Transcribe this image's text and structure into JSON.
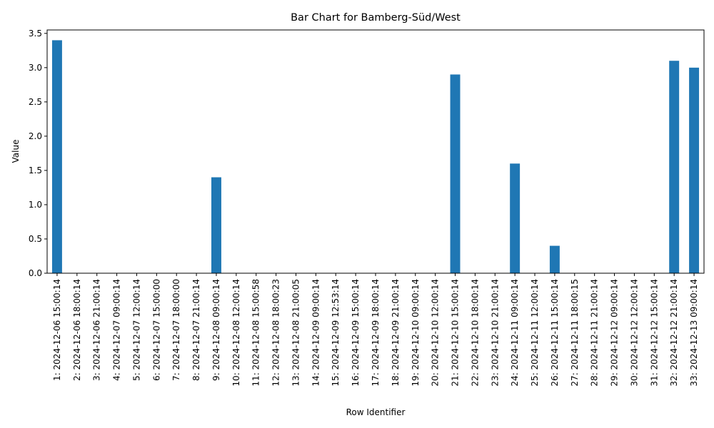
{
  "chart_data": {
    "type": "bar",
    "title": "Bar Chart for Bamberg-Süd/West",
    "xlabel": "Row Identifier",
    "ylabel": "Value",
    "ylim": [
      0,
      3.55
    ],
    "yticks": [
      "0.0",
      "0.5",
      "1.0",
      "1.5",
      "2.0",
      "2.5",
      "3.0",
      "3.5"
    ],
    "ytick_values": [
      0,
      0.5,
      1.0,
      1.5,
      2.0,
      2.5,
      3.0,
      3.5
    ],
    "bar_color": "#1f77b4",
    "grid": false,
    "categories": [
      "1: 2024-12-06 15:00:14",
      "2: 2024-12-06 18:00:14",
      "3: 2024-12-06 21:00:14",
      "4: 2024-12-07 09:00:14",
      "5: 2024-12-07 12:00:14",
      "6: 2024-12-07 15:00:00",
      "7: 2024-12-07 18:00:00",
      "8: 2024-12-07 21:00:14",
      "9: 2024-12-08 09:00:14",
      "10: 2024-12-08 12:00:14",
      "11: 2024-12-08 15:00:58",
      "12: 2024-12-08 18:00:23",
      "13: 2024-12-08 21:00:05",
      "14: 2024-12-09 09:00:14",
      "15: 2024-12-09 12:53:14",
      "16: 2024-12-09 15:00:14",
      "17: 2024-12-09 18:00:14",
      "18: 2024-12-09 21:00:14",
      "19: 2024-12-10 09:00:14",
      "20: 2024-12-10 12:00:14",
      "21: 2024-12-10 15:00:14",
      "22: 2024-12-10 18:00:14",
      "23: 2024-12-10 21:00:14",
      "24: 2024-12-11 09:00:14",
      "25: 2024-12-11 12:00:14",
      "26: 2024-12-11 15:00:14",
      "27: 2024-12-11 18:00:15",
      "28: 2024-12-11 21:00:14",
      "29: 2024-12-12 09:00:14",
      "30: 2024-12-12 12:00:14",
      "31: 2024-12-12 15:00:14",
      "32: 2024-12-12 21:00:14",
      "33: 2024-12-13 09:00:14"
    ],
    "values": [
      3.4,
      0,
      0,
      0,
      0,
      0,
      0,
      0,
      1.4,
      0,
      0,
      0,
      0,
      0,
      0,
      0,
      0,
      0,
      0,
      0,
      2.9,
      0,
      0,
      1.6,
      0,
      0.4,
      0,
      0,
      0,
      0,
      0,
      3.1,
      3.0
    ]
  }
}
